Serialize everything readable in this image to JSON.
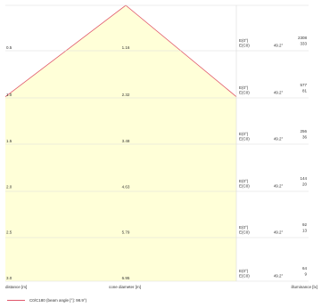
{
  "chart_data": {
    "type": "area",
    "headers": {
      "distance": "distance [m]",
      "cone_diameter": "cone diameter [m]",
      "illuminance": "illuminance [lx]"
    },
    "legend": "C0/C180 (beam angle [°]: 98.9°)",
    "colors": {
      "cone_fill": "#ffffd8",
      "cone_line": "#e0566a",
      "grid": "#dcdcdc"
    },
    "ylim": [
      0,
      3.0
    ],
    "rows": [
      {
        "distance": "0.5",
        "diameter": "1.16",
        "emax_label": "E(0°)",
        "eavg_label": "E(C0)",
        "angle": "49.2°",
        "emax": "2308",
        "eavg": "333"
      },
      {
        "distance": "1.0",
        "diameter": "2.32",
        "emax_label": "E(0°)",
        "eavg_label": "E(C0)",
        "angle": "49.2°",
        "emax": "577",
        "eavg": "81"
      },
      {
        "distance": "1.5",
        "diameter": "3.48",
        "emax_label": "E(0°)",
        "eavg_label": "E(C0)",
        "angle": "49.2°",
        "emax": "256",
        "eavg": "36"
      },
      {
        "distance": "2.0",
        "diameter": "4.63",
        "emax_label": "E(0°)",
        "eavg_label": "E(C0)",
        "angle": "49.2°",
        "emax": "144",
        "eavg": "20"
      },
      {
        "distance": "2.5",
        "diameter": "5.79",
        "emax_label": "E(0°)",
        "eavg_label": "E(C0)",
        "angle": "49.2°",
        "emax": "92",
        "eavg": "13"
      },
      {
        "distance": "3.0",
        "diameter": "6.95",
        "emax_label": "E(0°)",
        "eavg_label": "E(C0)",
        "angle": "49.2°",
        "emax": "64",
        "eavg": "9"
      }
    ]
  }
}
